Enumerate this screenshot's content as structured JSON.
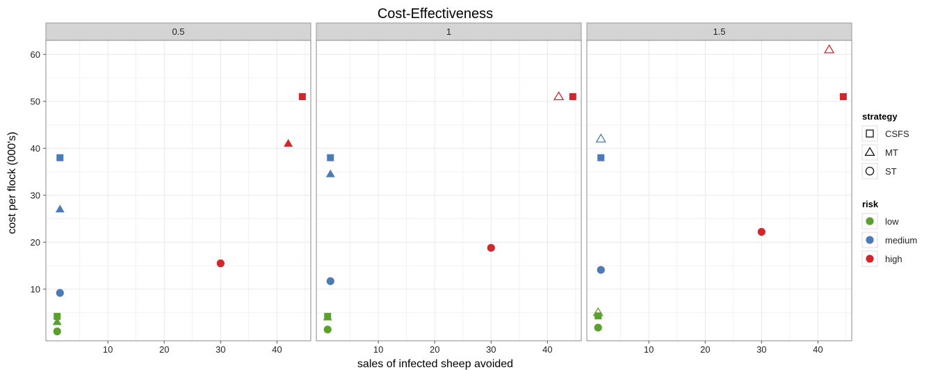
{
  "chart_data": {
    "type": "scatter",
    "title": "Cost-Effectiveness",
    "xlabel": "sales of infected sheep avoided",
    "ylabel": "cost per flock (000's)",
    "xlim": [
      -1,
      46
    ],
    "ylim": [
      -1,
      63
    ],
    "x_ticks": [
      10,
      20,
      30,
      40
    ],
    "y_ticks": [
      10,
      20,
      30,
      40,
      50,
      60
    ],
    "grid": true,
    "facets": [
      {
        "label": "0.5",
        "points": [
          {
            "x": 1.0,
            "y": 4.2,
            "strategy": "CSFS",
            "risk": "low",
            "filled": true
          },
          {
            "x": 1.0,
            "y": 3.0,
            "strategy": "MT",
            "risk": "low",
            "filled": true
          },
          {
            "x": 1.0,
            "y": 1.0,
            "strategy": "ST",
            "risk": "low",
            "filled": true
          },
          {
            "x": 1.5,
            "y": 38,
            "strategy": "CSFS",
            "risk": "medium",
            "filled": true
          },
          {
            "x": 1.5,
            "y": 27,
            "strategy": "MT",
            "risk": "medium",
            "filled": true
          },
          {
            "x": 1.5,
            "y": 9.2,
            "strategy": "ST",
            "risk": "medium",
            "filled": true
          },
          {
            "x": 44.5,
            "y": 51,
            "strategy": "CSFS",
            "risk": "high",
            "filled": true
          },
          {
            "x": 42,
            "y": 41,
            "strategy": "MT",
            "risk": "high",
            "filled": true
          },
          {
            "x": 30,
            "y": 15.5,
            "strategy": "ST",
            "risk": "high",
            "filled": true
          }
        ]
      },
      {
        "label": "1",
        "points": [
          {
            "x": 1.0,
            "y": 4.2,
            "strategy": "CSFS",
            "risk": "low",
            "filled": true
          },
          {
            "x": 1.0,
            "y": 4.0,
            "strategy": "MT",
            "risk": "low",
            "filled": true
          },
          {
            "x": 1.0,
            "y": 1.4,
            "strategy": "ST",
            "risk": "low",
            "filled": true
          },
          {
            "x": 1.5,
            "y": 38,
            "strategy": "CSFS",
            "risk": "medium",
            "filled": true
          },
          {
            "x": 1.5,
            "y": 34.5,
            "strategy": "MT",
            "risk": "medium",
            "filled": true
          },
          {
            "x": 1.5,
            "y": 11.7,
            "strategy": "ST",
            "risk": "medium",
            "filled": true
          },
          {
            "x": 44.5,
            "y": 51,
            "strategy": "CSFS",
            "risk": "high",
            "filled": true
          },
          {
            "x": 42,
            "y": 51,
            "strategy": "MT",
            "risk": "high",
            "filled": false
          },
          {
            "x": 30,
            "y": 18.8,
            "strategy": "ST",
            "risk": "high",
            "filled": true
          }
        ]
      },
      {
        "label": "1.5",
        "points": [
          {
            "x": 1.0,
            "y": 4.3,
            "strategy": "CSFS",
            "risk": "low",
            "filled": true
          },
          {
            "x": 1.0,
            "y": 5.0,
            "strategy": "MT",
            "risk": "low",
            "filled": false
          },
          {
            "x": 1.0,
            "y": 1.8,
            "strategy": "ST",
            "risk": "low",
            "filled": true
          },
          {
            "x": 1.5,
            "y": 38,
            "strategy": "CSFS",
            "risk": "medium",
            "filled": true
          },
          {
            "x": 1.5,
            "y": 42,
            "strategy": "MT",
            "risk": "medium",
            "filled": false
          },
          {
            "x": 1.5,
            "y": 14.1,
            "strategy": "ST",
            "risk": "medium",
            "filled": true
          },
          {
            "x": 44.5,
            "y": 51,
            "strategy": "CSFS",
            "risk": "high",
            "filled": true
          },
          {
            "x": 42,
            "y": 61,
            "strategy": "MT",
            "risk": "high",
            "filled": false
          },
          {
            "x": 30,
            "y": 22.2,
            "strategy": "ST",
            "risk": "high",
            "filled": true
          }
        ]
      }
    ],
    "legend": {
      "placement": "right",
      "strategy": {
        "title": "strategy",
        "items": [
          "CSFS",
          "MT",
          "ST"
        ]
      },
      "risk": {
        "title": "risk",
        "items": [
          "low",
          "medium",
          "high"
        ]
      }
    },
    "colors": {
      "low": "#5AA02C",
      "medium": "#4A7BB7",
      "high": "#D0262C",
      "strip": "#D4D4D4",
      "grid": "#E8E8E8"
    }
  }
}
